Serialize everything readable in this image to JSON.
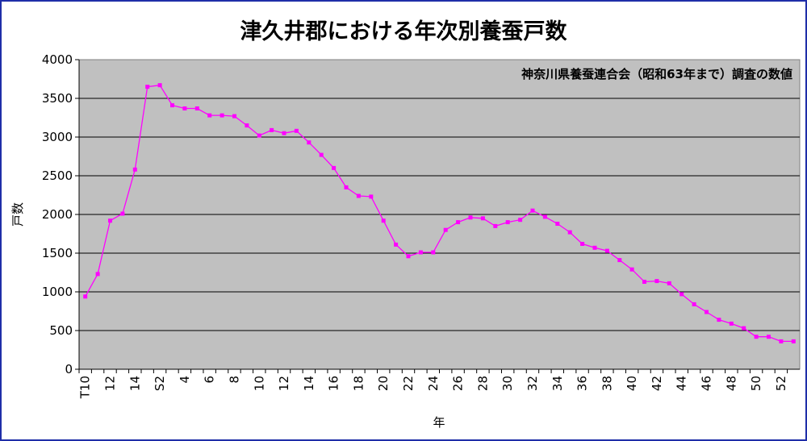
{
  "chart_data": {
    "type": "line",
    "title": "津久井郡における年次別養蚕戸数",
    "annotation": "神奈川県養蚕連合会（昭和63年まで）調査の数値",
    "xlabel": "年",
    "ylabel": "戸数",
    "ylim": [
      0,
      4000
    ],
    "y_ticks": [
      0,
      500,
      1000,
      1500,
      2000,
      2500,
      3000,
      3500,
      4000
    ],
    "grid": true,
    "x": [
      "T10",
      "11",
      "12",
      "13",
      "14",
      "15",
      "S2",
      "3",
      "4",
      "5",
      "6",
      "7",
      "8",
      "9",
      "10",
      "11",
      "12",
      "13",
      "14",
      "15",
      "16",
      "17",
      "18",
      "19",
      "20",
      "21",
      "22",
      "23",
      "24",
      "25",
      "26",
      "27",
      "28",
      "29",
      "30",
      "31",
      "32",
      "33",
      "34",
      "35",
      "36",
      "37",
      "38",
      "39",
      "40",
      "41",
      "42",
      "43",
      "44",
      "45",
      "46",
      "47",
      "48",
      "49",
      "50",
      "51",
      "52",
      "53"
    ],
    "x_tick_labels_shown": [
      "T10",
      "12",
      "14",
      "S2",
      "4",
      "6",
      "8",
      "10",
      "12",
      "14",
      "16",
      "18",
      "20",
      "22",
      "24",
      "26",
      "28",
      "30",
      "32",
      "34",
      "36",
      "38",
      "40",
      "42",
      "44",
      "46",
      "48",
      "50",
      "52"
    ],
    "series": [
      {
        "values": [
          940,
          1230,
          1920,
          2010,
          2580,
          3650,
          3670,
          3410,
          3370,
          3370,
          3280,
          3280,
          3270,
          3150,
          3020,
          3090,
          3050,
          3080,
          2930,
          2770,
          2600,
          2350,
          2240,
          2230,
          1920,
          1610,
          1460,
          1510,
          1510,
          1800,
          1900,
          1960,
          1950,
          1850,
          1900,
          1930,
          2050,
          1970,
          1880,
          1770,
          1620,
          1570,
          1530,
          1410,
          1290,
          1130,
          1140,
          1110,
          970,
          840,
          740,
          640,
          590,
          530,
          420,
          420,
          360,
          360
        ],
        "color": "#ff00ff"
      }
    ],
    "colors": {
      "plot_bg": "#c0c0c0",
      "frame": "#1f2ea8",
      "line": "#ff00ff",
      "grid": "#000000"
    }
  }
}
